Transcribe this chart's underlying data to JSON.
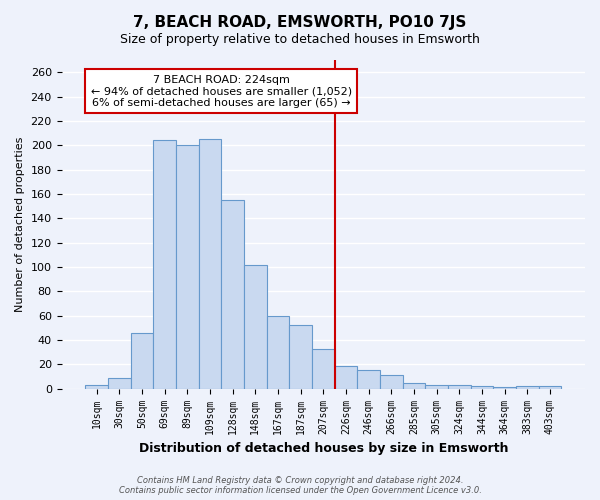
{
  "title": "7, BEACH ROAD, EMSWORTH, PO10 7JS",
  "subtitle": "Size of property relative to detached houses in Emsworth",
  "xlabel": "Distribution of detached houses by size in Emsworth",
  "ylabel": "Number of detached properties",
  "bar_labels": [
    "10sqm",
    "30sqm",
    "50sqm",
    "69sqm",
    "89sqm",
    "109sqm",
    "128sqm",
    "148sqm",
    "167sqm",
    "187sqm",
    "207sqm",
    "226sqm",
    "246sqm",
    "266sqm",
    "285sqm",
    "305sqm",
    "324sqm",
    "344sqm",
    "364sqm",
    "383sqm",
    "403sqm"
  ],
  "bar_values": [
    3,
    9,
    46,
    204,
    200,
    205,
    155,
    102,
    60,
    52,
    33,
    19,
    15,
    11,
    5,
    3,
    3,
    2,
    1,
    2,
    2
  ],
  "bar_color_fill": "#c9d9f0",
  "bar_color_edge": "#6699cc",
  "background_color": "#eef2fb",
  "grid_color": "#ffffff",
  "vline_x_index": 11,
  "vline_color": "#cc0000",
  "annotation_title": "7 BEACH ROAD: 224sqm",
  "annotation_line1": "← 94% of detached houses are smaller (1,052)",
  "annotation_line2": "6% of semi-detached houses are larger (65) →",
  "annotation_box_color": "#ffffff",
  "annotation_box_edge": "#cc0000",
  "ylim": [
    0,
    270
  ],
  "yticks": [
    0,
    20,
    40,
    60,
    80,
    100,
    120,
    140,
    160,
    180,
    200,
    220,
    240,
    260
  ],
  "footer_line1": "Contains HM Land Registry data © Crown copyright and database right 2024.",
  "footer_line2": "Contains public sector information licensed under the Open Government Licence v3.0."
}
